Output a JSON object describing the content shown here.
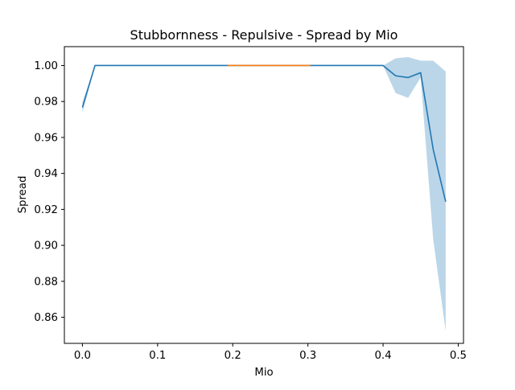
{
  "chart_data": {
    "type": "line",
    "title": "Stubbornness - Repulsive - Spread by Mio",
    "xlabel": "Mio",
    "ylabel": "Spread",
    "xlim": [
      -0.024,
      0.507
    ],
    "ylim": [
      0.8455,
      1.0105
    ],
    "x_ticks": [
      0.0,
      0.1,
      0.2,
      0.3,
      0.4,
      0.5
    ],
    "x_tick_labels": [
      "0.0",
      "0.1",
      "0.2",
      "0.3",
      "0.4",
      "0.5"
    ],
    "y_ticks": [
      0.86,
      0.88,
      0.9,
      0.92,
      0.94,
      0.96,
      0.98,
      1.0
    ],
    "y_tick_labels": [
      "0.86",
      "0.88",
      "0.90",
      "0.92",
      "0.94",
      "0.96",
      "0.98",
      "1.00"
    ],
    "grid": false,
    "legend": "none",
    "series": [
      {
        "color": "#1f77b4",
        "x": [
          0.0,
          0.0167,
          0.0333,
          0.05,
          0.0667,
          0.0833,
          0.1,
          0.1167,
          0.1333,
          0.15,
          0.1667,
          0.1833,
          0.2,
          0.2167,
          0.2333,
          0.25,
          0.2667,
          0.2833,
          0.3,
          0.3167,
          0.3333,
          0.35,
          0.3667,
          0.3833,
          0.4,
          0.4167,
          0.4333,
          0.45,
          0.4667,
          0.4833
        ],
        "y": [
          0.9767,
          1.0,
          1.0,
          1.0,
          1.0,
          1.0,
          1.0,
          1.0,
          1.0,
          1.0,
          1.0,
          1.0,
          1.0,
          1.0,
          1.0,
          1.0,
          1.0,
          1.0,
          1.0,
          1.0,
          1.0,
          1.0,
          1.0,
          1.0,
          1.0,
          0.9943,
          0.9933,
          0.996,
          0.9533,
          0.9243
        ],
        "band_lower": [
          0.9737,
          1.0,
          1.0,
          1.0,
          1.0,
          1.0,
          1.0,
          1.0,
          1.0,
          1.0,
          1.0,
          1.0,
          1.0,
          1.0,
          1.0,
          1.0,
          1.0,
          1.0,
          1.0,
          1.0,
          1.0,
          1.0,
          1.0,
          1.0,
          1.0,
          0.9847,
          0.982,
          0.9933,
          0.9033,
          0.8523
        ],
        "band_upper": [
          0.9797,
          1.0,
          1.0,
          1.0,
          1.0,
          1.0,
          1.0,
          1.0,
          1.0,
          1.0,
          1.0,
          1.0,
          1.0,
          1.0,
          1.0,
          1.0,
          1.0,
          1.0,
          1.0,
          1.0,
          1.0,
          1.0,
          1.0,
          1.0,
          1.0,
          1.004,
          1.0047,
          1.0027,
          1.0027,
          0.9967
        ],
        "band_color": "#1f77b4",
        "band_opacity": 0.3
      },
      {
        "color": "#ff7f0e",
        "x": [
          0.1933,
          0.3033
        ],
        "y": [
          1.0,
          1.0
        ]
      }
    ]
  }
}
